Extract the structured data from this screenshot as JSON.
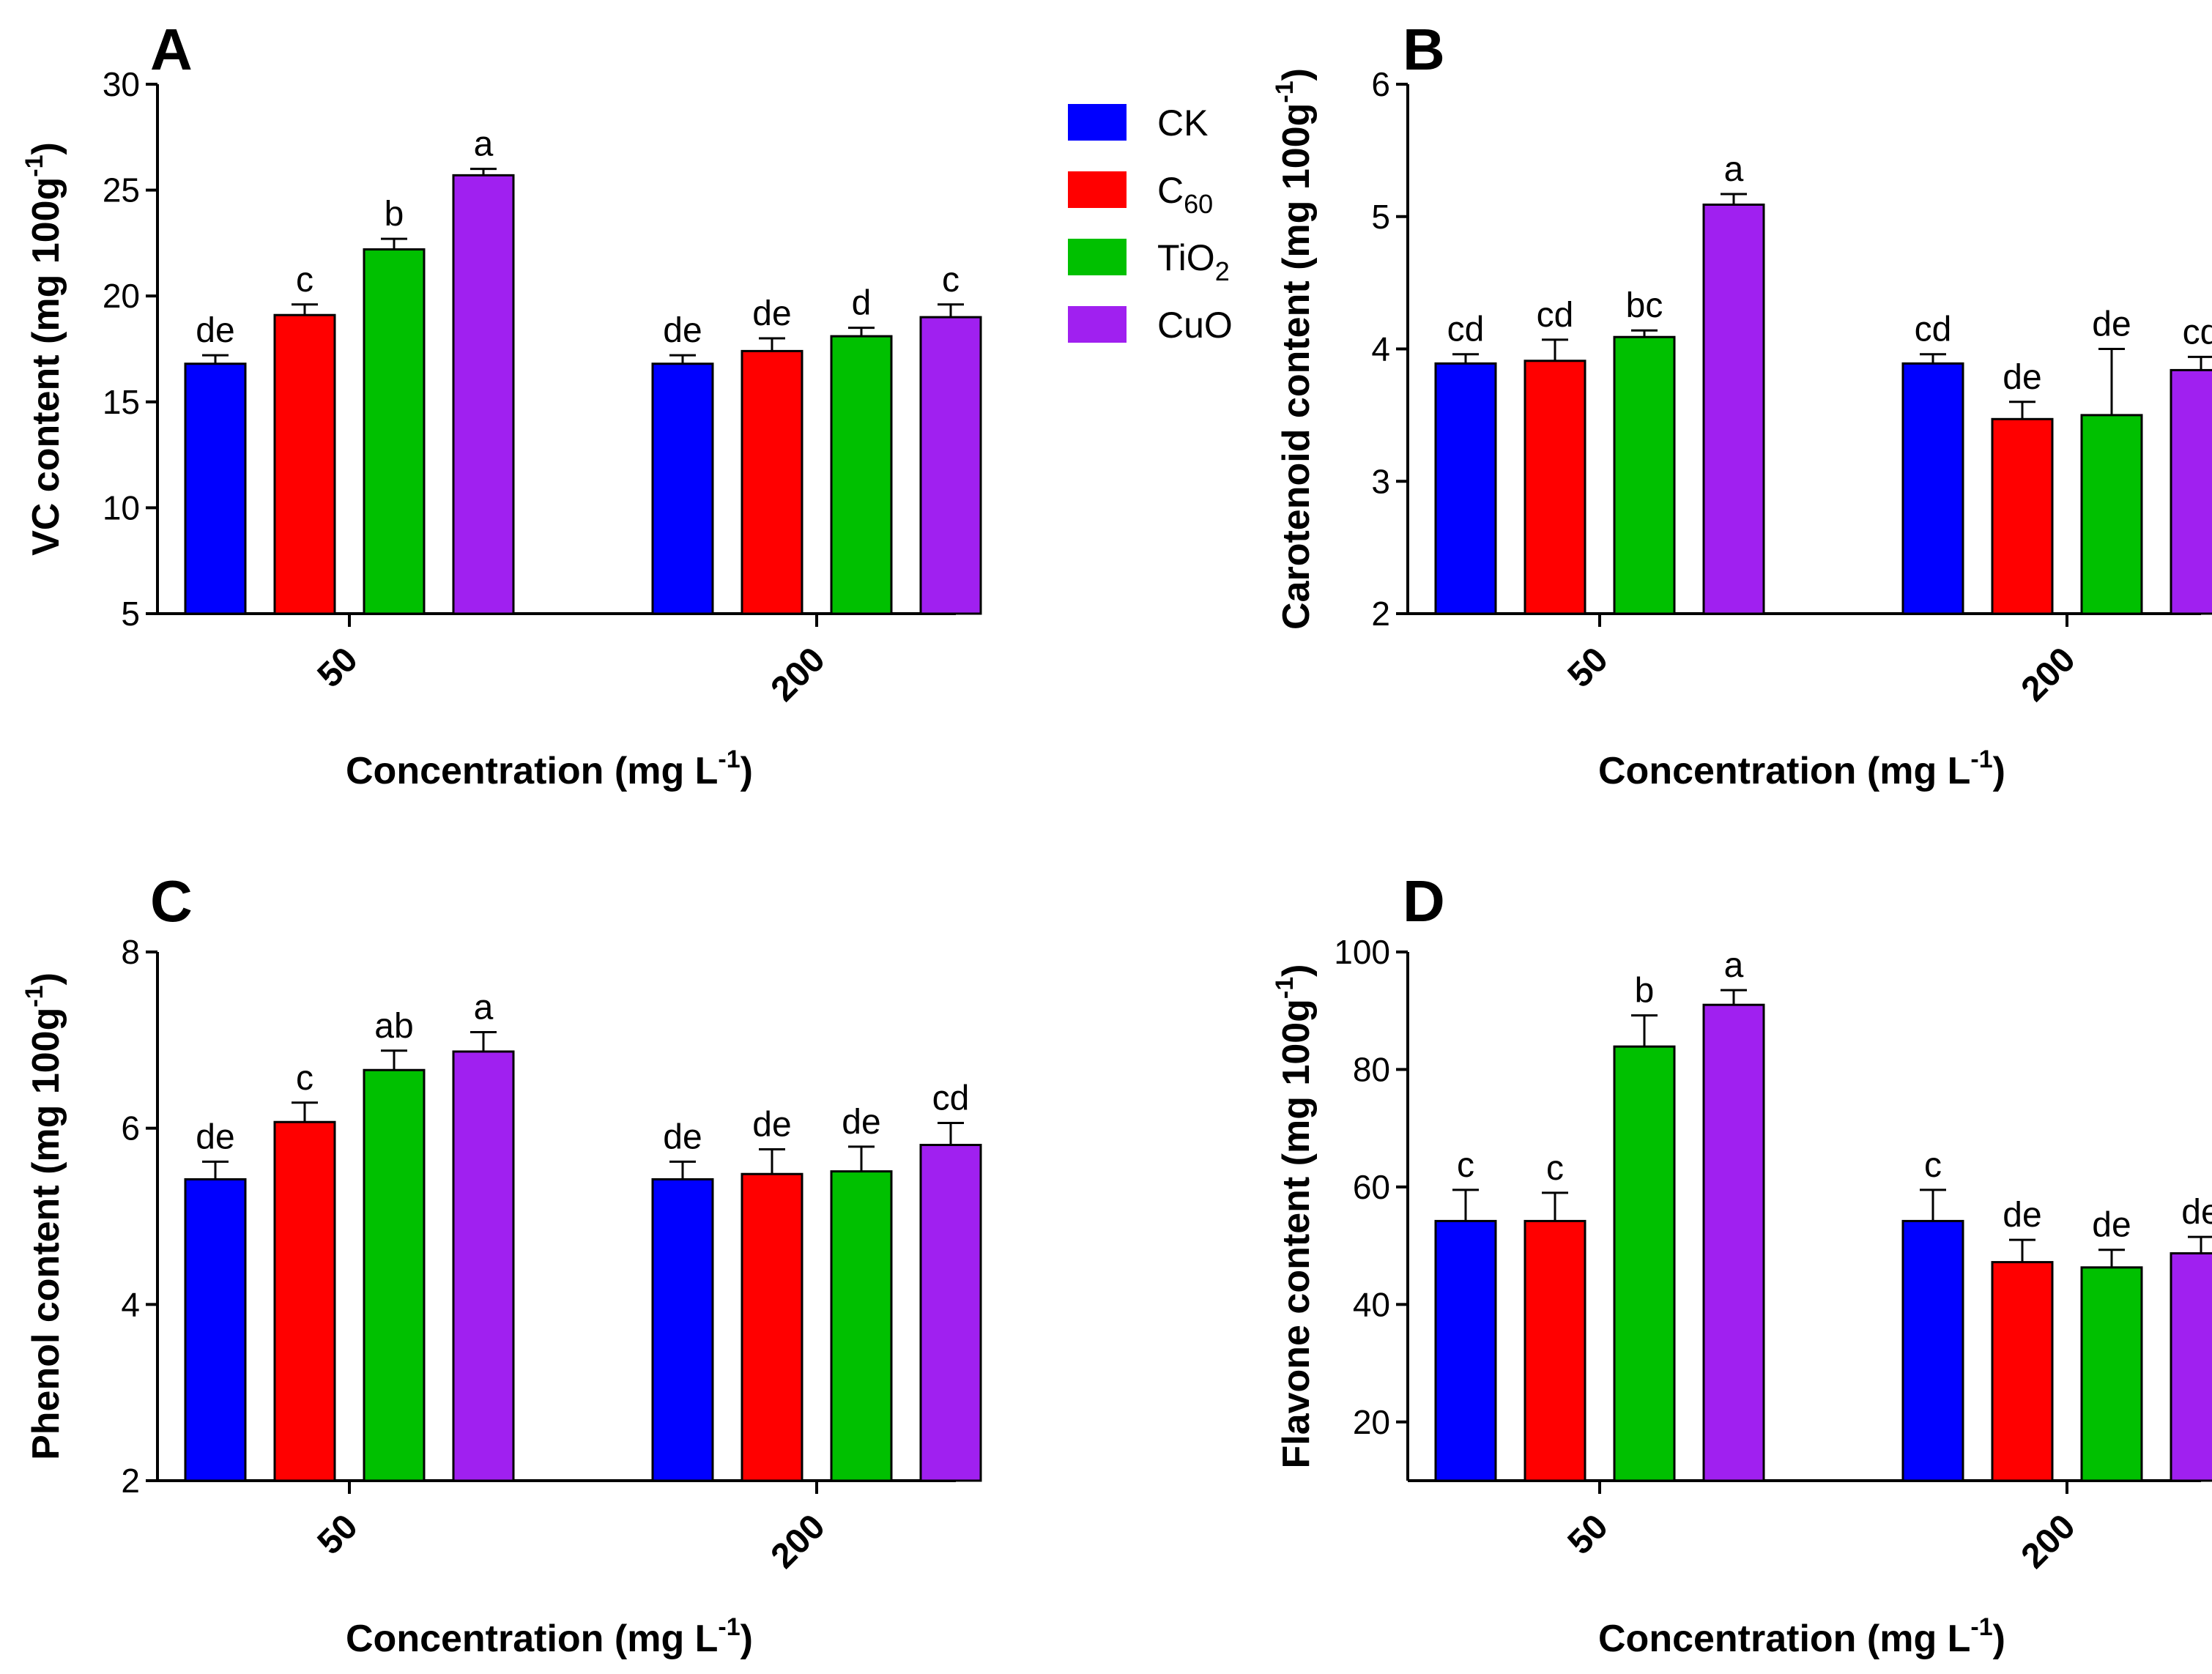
{
  "colors": {
    "CK": "#0000ff",
    "C60": "#ff0000",
    "TiO2": "#00c000",
    "CuO": "#a020f0"
  },
  "legend": [
    {
      "key": "CK",
      "label": "CK",
      "color": "#0000ff"
    },
    {
      "key": "C60",
      "label": "C",
      "sub": "60",
      "color": "#ff0000"
    },
    {
      "key": "TiO2",
      "label": "TiO",
      "sub": "2",
      "color": "#00c000"
    },
    {
      "key": "CuO",
      "label": "CuO",
      "color": "#a020f0"
    }
  ],
  "chart_data": [
    {
      "panel": "A",
      "type": "bar",
      "ylabel": "VC content (mg 100g",
      "ylabel_sup": "-1",
      "ylabel_end": ")",
      "xlabel": "Concentration (mg L",
      "xlabel_sup": "-1",
      "xlabel_end": ")",
      "categories": [
        "50",
        "200"
      ],
      "ylim": [
        5,
        30
      ],
      "yticks": [
        5,
        10,
        15,
        20,
        25,
        30
      ],
      "series": [
        {
          "name": "CK",
          "values": [
            16.8,
            16.8
          ],
          "errors": [
            0.4,
            0.4
          ],
          "letters": [
            "de",
            "de"
          ]
        },
        {
          "name": "C60",
          "values": [
            19.1,
            17.4
          ],
          "errors": [
            0.5,
            0.6
          ],
          "letters": [
            "c",
            "de"
          ]
        },
        {
          "name": "TiO2",
          "values": [
            22.2,
            18.1
          ],
          "errors": [
            0.5,
            0.4
          ],
          "letters": [
            "b",
            "d"
          ]
        },
        {
          "name": "CuO",
          "values": [
            25.7,
            19.0
          ],
          "errors": [
            0.3,
            0.6
          ],
          "letters": [
            "a",
            "c"
          ]
        }
      ]
    },
    {
      "panel": "B",
      "type": "bar",
      "ylabel": "Carotenoid content (mg 100g",
      "ylabel_sup": "-1",
      "ylabel_end": ")",
      "xlabel": "Concentration (mg L",
      "xlabel_sup": "-1",
      "xlabel_end": ")",
      "categories": [
        "50",
        "200"
      ],
      "ylim": [
        2,
        6
      ],
      "yticks": [
        2,
        3,
        4,
        5,
        6
      ],
      "series": [
        {
          "name": "CK",
          "values": [
            3.89,
            3.89
          ],
          "errors": [
            0.07,
            0.07
          ],
          "letters": [
            "cd",
            "cd"
          ]
        },
        {
          "name": "C60",
          "values": [
            3.91,
            3.47
          ],
          "errors": [
            0.16,
            0.13
          ],
          "letters": [
            "cd",
            "de"
          ]
        },
        {
          "name": "TiO2",
          "values": [
            4.09,
            3.5
          ],
          "errors": [
            0.05,
            0.5
          ],
          "letters": [
            "bc",
            "de"
          ]
        },
        {
          "name": "CuO",
          "values": [
            5.09,
            3.84
          ],
          "errors": [
            0.08,
            0.1
          ],
          "letters": [
            "a",
            "cd"
          ]
        }
      ]
    },
    {
      "panel": "C",
      "type": "bar",
      "ylabel": "Phenol content (mg 100g",
      "ylabel_sup": "-1",
      "ylabel_end": ")",
      "xlabel": "Concentration (mg L",
      "xlabel_sup": "-1",
      "xlabel_end": ")",
      "categories": [
        "50",
        "200"
      ],
      "ylim": [
        2,
        8
      ],
      "yticks": [
        2,
        4,
        6,
        8
      ],
      "series": [
        {
          "name": "CK",
          "values": [
            5.42,
            5.42
          ],
          "errors": [
            0.2,
            0.2
          ],
          "letters": [
            "de",
            "de"
          ]
        },
        {
          "name": "C60",
          "values": [
            6.07,
            5.48
          ],
          "errors": [
            0.22,
            0.28
          ],
          "letters": [
            "c",
            "de"
          ]
        },
        {
          "name": "TiO2",
          "values": [
            6.66,
            5.51
          ],
          "errors": [
            0.22,
            0.28
          ],
          "letters": [
            "ab",
            "de"
          ]
        },
        {
          "name": "CuO",
          "values": [
            6.87,
            5.81
          ],
          "errors": [
            0.22,
            0.25
          ],
          "letters": [
            "a",
            "cd"
          ]
        }
      ]
    },
    {
      "panel": "D",
      "type": "bar",
      "ylabel": "Flavone content (mg 100g",
      "ylabel_sup": "-1",
      "ylabel_end": ")",
      "xlabel": "Concentration (mg L",
      "xlabel_sup": "-1",
      "xlabel_end": ")",
      "categories": [
        "50",
        "200"
      ],
      "ylim": [
        10,
        100
      ],
      "yticks": [
        20,
        40,
        60,
        80,
        100
      ],
      "series": [
        {
          "name": "CK",
          "values": [
            54.2,
            54.2
          ],
          "errors": [
            5.3,
            5.3
          ],
          "letters": [
            "c",
            "c"
          ]
        },
        {
          "name": "C60",
          "values": [
            54.2,
            47.2
          ],
          "errors": [
            4.8,
            3.8
          ],
          "letters": [
            "c",
            "de"
          ]
        },
        {
          "name": "TiO2",
          "values": [
            83.9,
            46.3
          ],
          "errors": [
            5.3,
            3.0
          ],
          "letters": [
            "b",
            "de"
          ]
        },
        {
          "name": "CuO",
          "values": [
            91.0,
            48.7
          ],
          "errors": [
            2.5,
            2.8
          ],
          "letters": [
            "a",
            "de"
          ]
        }
      ]
    }
  ]
}
